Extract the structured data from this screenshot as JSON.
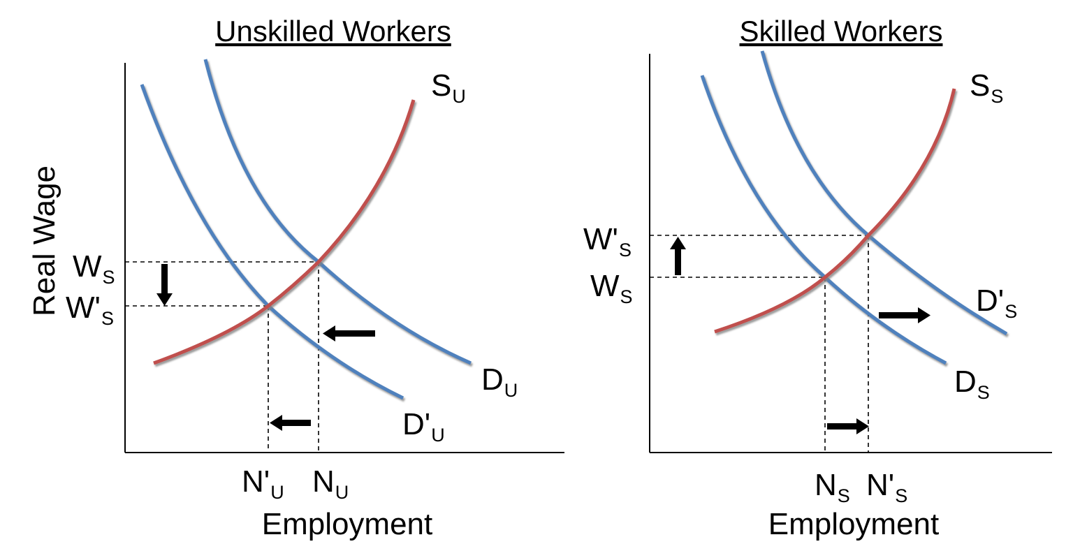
{
  "y_axis_label": "Real Wage",
  "colors": {
    "demand": "#4F81BD",
    "supply": "#C0504D",
    "shadow": "#9a9a9a",
    "ink": "#000000"
  },
  "left_panel": {
    "title": "Unskilled Workers",
    "x_axis_label": "Employment",
    "supply": {
      "main": "S",
      "sub": "U"
    },
    "demand": {
      "main": "D",
      "sub": "U"
    },
    "demand_new": {
      "main": "D'",
      "sub": "U"
    },
    "wage_old": {
      "main": "W",
      "sub": "S"
    },
    "wage_new": {
      "main": "W'",
      "sub": "S"
    },
    "emp_old": {
      "main": "N",
      "sub": "U"
    },
    "emp_new": {
      "main": "N'",
      "sub": "U"
    }
  },
  "right_panel": {
    "title": "Skilled Workers",
    "x_axis_label": "Employment",
    "supply": {
      "main": "S",
      "sub": "S"
    },
    "demand": {
      "main": "D",
      "sub": "S"
    },
    "demand_new": {
      "main": "D'",
      "sub": "S"
    },
    "wage_new": {
      "main": "W'",
      "sub": "S"
    },
    "wage_old": {
      "main": "W",
      "sub": "S"
    },
    "emp_old": {
      "main": "N",
      "sub": "S"
    },
    "emp_new": {
      "main": "N'",
      "sub": "S"
    }
  }
}
